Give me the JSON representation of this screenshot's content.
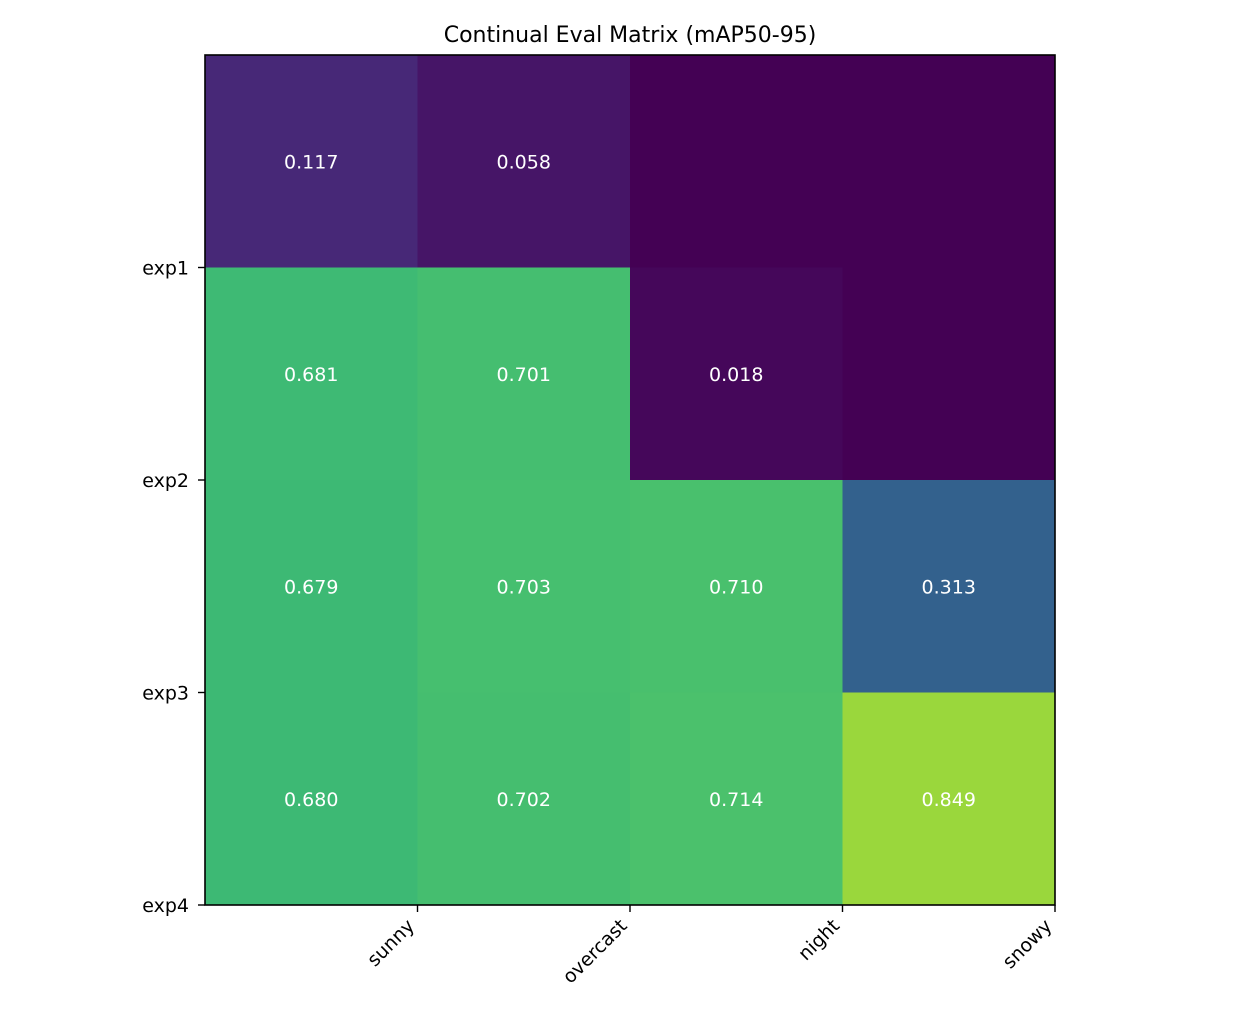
{
  "chart_data": {
    "type": "heatmap",
    "title": "Continual Eval Matrix (mAP50-95)",
    "xlabel": "",
    "ylabel": "",
    "columns": [
      "sunny",
      "overcast",
      "night",
      "snowy"
    ],
    "rows": [
      "exp1",
      "exp2",
      "exp3",
      "exp4"
    ],
    "values": [
      [
        0.117,
        0.058,
        0.0,
        0.0
      ],
      [
        0.681,
        0.701,
        0.018,
        0.0
      ],
      [
        0.679,
        0.703,
        0.71,
        0.313
      ],
      [
        0.68,
        0.702,
        0.714,
        0.849
      ]
    ],
    "labels": [
      [
        "0.117",
        "0.058",
        "",
        ""
      ],
      [
        "0.681",
        "0.701",
        "0.018",
        ""
      ],
      [
        "0.679",
        "0.703",
        "0.710",
        "0.313"
      ],
      [
        "0.680",
        "0.702",
        "0.714",
        "0.849"
      ]
    ],
    "colormap": "viridis",
    "vmin": 0.0,
    "vmax": 1.0,
    "grid": false,
    "colorbar": false
  }
}
